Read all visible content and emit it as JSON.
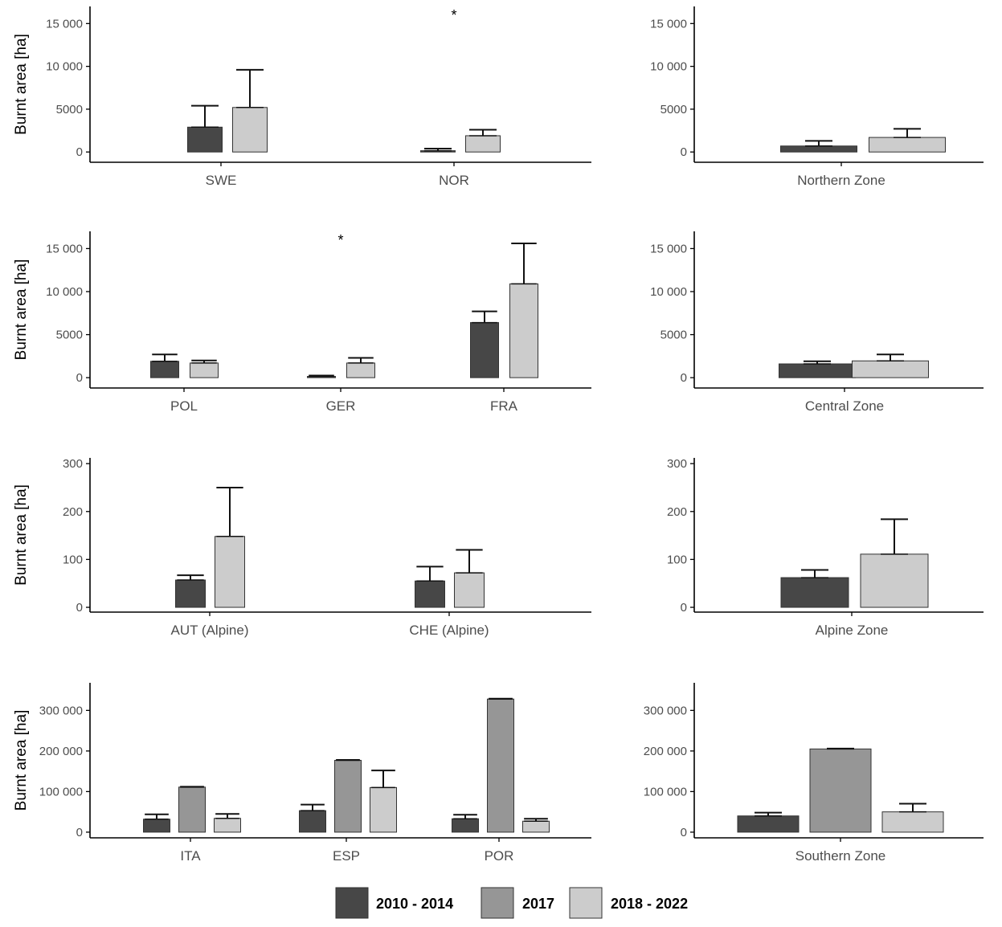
{
  "colors": {
    "2010 - 2014": "#474747",
    "2017": "#969696",
    "2018 - 2022": "#cccccc",
    "axis": "#000000",
    "tick_text": "#4d4d4d"
  },
  "legend": {
    "items": [
      {
        "label": "2010 - 2014"
      },
      {
        "label": "2017"
      },
      {
        "label": "2018 - 2022"
      }
    ]
  },
  "chart_data": [
    {
      "type": "bar",
      "title": "",
      "ylabel": "Burnt area [ha]",
      "ylim": [
        -1200,
        17000
      ],
      "yticks": [
        0,
        5000,
        10000,
        15000
      ],
      "ytick_labels": [
        "0",
        "5000",
        "10 000",
        "15 000"
      ],
      "categories": [
        "SWE",
        "NOR"
      ],
      "series": [
        {
          "name": "2010 - 2014",
          "values": [
            2900,
            150
          ],
          "errors": [
            2500,
            250
          ]
        },
        {
          "name": "2018 - 2022",
          "values": [
            5200,
            1900
          ],
          "errors": [
            4400,
            700
          ]
        }
      ],
      "annotations": [
        {
          "category": "NOR",
          "text": "*"
        }
      ]
    },
    {
      "type": "bar",
      "title": "",
      "ylabel": "",
      "ylim": [
        -1200,
        17000
      ],
      "yticks": [
        0,
        5000,
        10000,
        15000
      ],
      "ytick_labels": [
        "0",
        "5000",
        "10 000",
        "15 000"
      ],
      "categories": [
        "Northern Zone"
      ],
      "series": [
        {
          "name": "2010 - 2014",
          "values": [
            700
          ],
          "errors": [
            600
          ]
        },
        {
          "name": "2018 - 2022",
          "values": [
            1700
          ],
          "errors": [
            1000
          ]
        }
      ]
    },
    {
      "type": "bar",
      "title": "",
      "ylabel": "Burnt area [ha]",
      "ylim": [
        -1200,
        17000
      ],
      "yticks": [
        0,
        5000,
        10000,
        15000
      ],
      "ytick_labels": [
        "0",
        "5000",
        "10 000",
        "15 000"
      ],
      "categories": [
        "POL",
        "GER",
        "FRA"
      ],
      "series": [
        {
          "name": "2010 - 2014",
          "values": [
            1900,
            150,
            6400
          ],
          "errors": [
            800,
            100,
            1300
          ]
        },
        {
          "name": "2018 - 2022",
          "values": [
            1700,
            1700,
            10900
          ],
          "errors": [
            300,
            600,
            4700
          ]
        }
      ],
      "annotations": [
        {
          "category": "GER",
          "text": "*"
        }
      ]
    },
    {
      "type": "bar",
      "title": "",
      "ylabel": "",
      "ylim": [
        -1200,
        17000
      ],
      "yticks": [
        0,
        5000,
        10000,
        15000
      ],
      "ytick_labels": [
        "0",
        "5000",
        "10 000",
        "15 000"
      ],
      "categories": [
        "Central Zone"
      ],
      "series": [
        {
          "name": "2010 - 2014",
          "values": [
            1600
          ],
          "errors": [
            300
          ]
        },
        {
          "name": "2018 - 2022",
          "values": [
            1950
          ],
          "errors": [
            750
          ]
        }
      ]
    },
    {
      "type": "bar",
      "title": "",
      "ylabel": "Burnt area [ha]",
      "ylim": [
        -10,
        312
      ],
      "yticks": [
        0,
        100,
        200,
        300
      ],
      "ytick_labels": [
        "0",
        "100",
        "200",
        "300"
      ],
      "categories": [
        "AUT (Alpine)",
        "CHE (Alpine)"
      ],
      "series": [
        {
          "name": "2010 - 2014",
          "values": [
            57,
            55
          ],
          "errors": [
            10,
            30
          ]
        },
        {
          "name": "2018 - 2022",
          "values": [
            148,
            72
          ],
          "errors": [
            102,
            48
          ]
        }
      ]
    },
    {
      "type": "bar",
      "title": "",
      "ylabel": "",
      "ylim": [
        -10,
        312
      ],
      "yticks": [
        0,
        100,
        200,
        300
      ],
      "ytick_labels": [
        "0",
        "100",
        "200",
        "300"
      ],
      "categories": [
        "Alpine Zone"
      ],
      "series": [
        {
          "name": "2010 - 2014",
          "values": [
            62
          ],
          "errors": [
            16
          ]
        },
        {
          "name": "2018 - 2022",
          "values": [
            111
          ],
          "errors": [
            73
          ]
        }
      ]
    },
    {
      "type": "bar",
      "title": "",
      "ylabel": "Burnt area [ha]",
      "ylim": [
        -14000,
        368000
      ],
      "yticks": [
        0,
        100000,
        200000,
        300000
      ],
      "ytick_labels": [
        "0",
        "100 000",
        "200 000",
        "300 000"
      ],
      "categories": [
        "ITA",
        "ESP",
        "POR"
      ],
      "series": [
        {
          "name": "2010 - 2014",
          "values": [
            32000,
            53000,
            33000
          ],
          "errors": [
            12000,
            15000,
            10000
          ]
        },
        {
          "name": "2017",
          "values": [
            111000,
            177000,
            328000
          ],
          "errors": [
            1000,
            1000,
            1000
          ]
        },
        {
          "name": "2018 - 2022",
          "values": [
            34000,
            110000,
            27000
          ],
          "errors": [
            11000,
            42000,
            6000
          ]
        }
      ]
    },
    {
      "type": "bar",
      "title": "",
      "ylabel": "",
      "ylim": [
        -14000,
        368000
      ],
      "yticks": [
        0,
        100000,
        200000,
        300000
      ],
      "ytick_labels": [
        "0",
        "100 000",
        "200 000",
        "300 000"
      ],
      "categories": [
        "Southern Zone"
      ],
      "series": [
        {
          "name": "2010 - 2014",
          "values": [
            40000
          ],
          "errors": [
            8000
          ]
        },
        {
          "name": "2017",
          "values": [
            205000
          ],
          "errors": [
            1000
          ]
        },
        {
          "name": "2018 - 2022",
          "values": [
            50000
          ],
          "errors": [
            20000
          ]
        }
      ]
    }
  ]
}
